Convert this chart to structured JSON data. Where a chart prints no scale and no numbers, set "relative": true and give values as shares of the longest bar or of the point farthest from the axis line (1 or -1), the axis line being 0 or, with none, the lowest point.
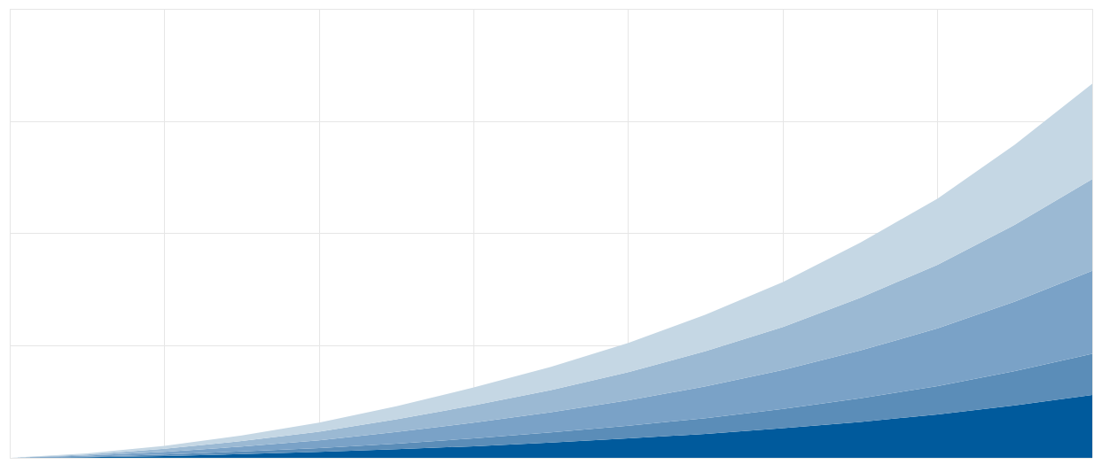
{
  "chart_data": {
    "type": "area",
    "relative": true,
    "stacked": true,
    "grid": true,
    "categories": [
      null,
      null,
      null,
      null,
      null,
      null,
      null,
      null,
      null,
      null,
      null,
      null,
      null,
      null,
      null
    ],
    "series": [
      {
        "color": "#005a9c",
        "values": [
          0,
          0.002,
          0.005,
          0.01,
          0.016,
          0.023,
          0.031,
          0.041,
          0.052,
          0.064,
          0.079,
          0.096,
          0.116,
          0.14,
          0.168
        ]
      },
      {
        "color": "#5b8db8",
        "values": [
          0,
          0.001,
          0.004,
          0.007,
          0.01,
          0.015,
          0.021,
          0.027,
          0.034,
          0.042,
          0.052,
          0.063,
          0.076,
          0.092,
          0.11
        ]
      },
      {
        "color": "#7aa2c7",
        "values": [
          0,
          0.003,
          0.007,
          0.013,
          0.021,
          0.031,
          0.042,
          0.054,
          0.068,
          0.085,
          0.104,
          0.128,
          0.154,
          0.186,
          0.222
        ]
      },
      {
        "color": "#9bb9d3",
        "values": [
          0,
          0.003,
          0.008,
          0.015,
          0.023,
          0.034,
          0.046,
          0.059,
          0.075,
          0.094,
          0.115,
          0.141,
          0.17,
          0.205,
          0.245
        ]
      },
      {
        "color": "#c5d7e4",
        "values": [
          0,
          0.003,
          0.008,
          0.015,
          0.024,
          0.035,
          0.048,
          0.062,
          0.078,
          0.098,
          0.12,
          0.147,
          0.177,
          0.214,
          0.255
        ]
      }
    ]
  }
}
